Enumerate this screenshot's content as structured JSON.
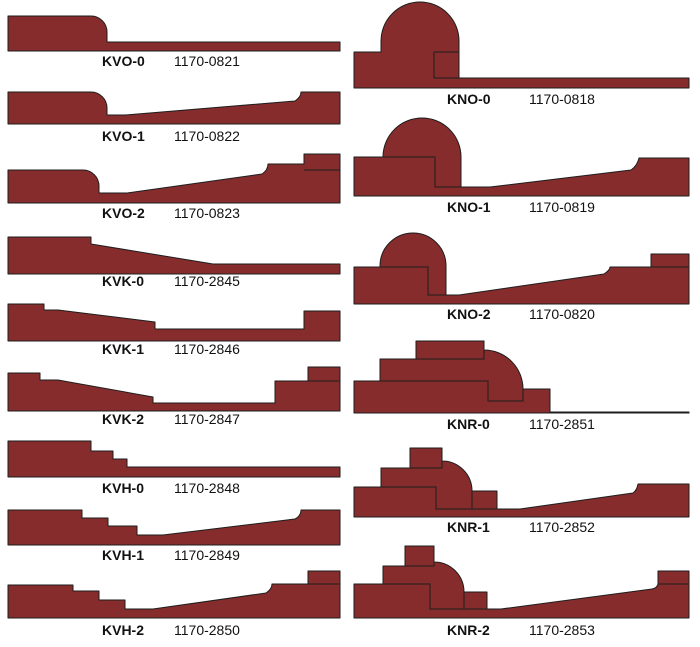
{
  "colors": {
    "profile_fill": "#862c2c",
    "outline": "#1e1e1e",
    "background": "#ffffff"
  },
  "profiles": [
    {
      "code": "KVO-0",
      "part_number": "1170-0821"
    },
    {
      "code": "KVO-1",
      "part_number": "1170-0822"
    },
    {
      "code": "KVO-2",
      "part_number": "1170-0823"
    },
    {
      "code": "KVK-0",
      "part_number": "1170-2845"
    },
    {
      "code": "KVK-1",
      "part_number": "1170-2846"
    },
    {
      "code": "KVK-2",
      "part_number": "1170-2847"
    },
    {
      "code": "KVH-0",
      "part_number": "1170-2848"
    },
    {
      "code": "KVH-1",
      "part_number": "1170-2849"
    },
    {
      "code": "KVH-2",
      "part_number": "1170-2850"
    },
    {
      "code": "KNO-0",
      "part_number": "1170-0818"
    },
    {
      "code": "KNO-1",
      "part_number": "1170-0819"
    },
    {
      "code": "KNO-2",
      "part_number": "1170-0820"
    },
    {
      "code": "KNR-0",
      "part_number": "1170-2851"
    },
    {
      "code": "KNR-1",
      "part_number": "1170-2852"
    },
    {
      "code": "KNR-2",
      "part_number": "1170-2853"
    }
  ]
}
